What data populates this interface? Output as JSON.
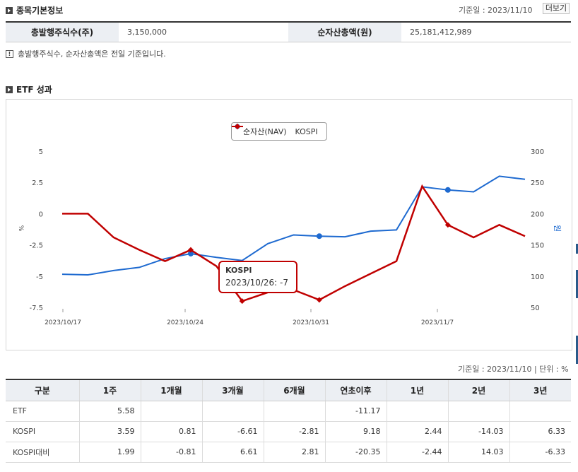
{
  "basic": {
    "title": "종목기본정보",
    "base_date": "기준일 : 2023/11/10",
    "more_label": "더보기",
    "shares_label": "총발행주식수(주)",
    "shares_value": "3,150,000",
    "nav_label": "순자산총액(원)",
    "nav_value": "25,181,412,989",
    "note": "총발행주식수, 순자산총액은 전일 기준입니다."
  },
  "etf": {
    "title": "ETF 성과"
  },
  "chart_data": {
    "type": "line",
    "legend": [
      "순자산(NAV)",
      "KOSPI"
    ],
    "legend_placement": "top-center",
    "left_axis": {
      "ticks": [
        "5",
        "2.5",
        "0",
        "-2.5",
        "-5",
        "-7.5"
      ],
      "label": "%",
      "ylim": [
        -7.5,
        5
      ]
    },
    "right_axis": {
      "ticks": [
        "300",
        "250",
        "200",
        "150",
        "100",
        "50"
      ],
      "label": "원",
      "ylim": [
        50,
        300
      ]
    },
    "x_ticks": [
      "2023/10/17",
      "2023/10/24",
      "2023/10/31",
      "2023/11/7"
    ],
    "series": [
      {
        "name": "순자산(NAV)",
        "axis": "right",
        "color": "#1e6ad0",
        "values": [
          103,
          102,
          109,
          114,
          128,
          136,
          130,
          125,
          152,
          166,
          164,
          163,
          172,
          174,
          243,
          238,
          235,
          260,
          255
        ]
      },
      {
        "name": "KOSPI",
        "axis": "left",
        "color": "#c00000",
        "values": [
          0,
          0,
          -1.9,
          -2.9,
          -3.8,
          -2.9,
          -4.2,
          -7,
          -6.3,
          -6.1,
          -6.9,
          -5.8,
          -4.8,
          -3.8,
          2.2,
          -0.9,
          -1.9,
          -0.9,
          -1.8
        ]
      }
    ],
    "tooltip": {
      "series": "KOSPI",
      "text": "2023/10/26: -7"
    }
  },
  "perf": {
    "base_unit": "기준일 : 2023/11/10 | 단위 : %",
    "headers": [
      "구분",
      "1주",
      "1개월",
      "3개월",
      "6개월",
      "연초이후",
      "1년",
      "2년",
      "3년"
    ],
    "rows": [
      [
        "ETF",
        "5.58",
        "",
        "",
        "",
        "-11.17",
        "",
        "",
        ""
      ],
      [
        "KOSPI",
        "3.59",
        "0.81",
        "-6.61",
        "-2.81",
        "9.18",
        "2.44",
        "-14.03",
        "6.33"
      ],
      [
        "KOSPI대비",
        "1.99",
        "-0.81",
        "6.61",
        "2.81",
        "-20.35",
        "-2.44",
        "14.03",
        "-6.33"
      ]
    ]
  }
}
